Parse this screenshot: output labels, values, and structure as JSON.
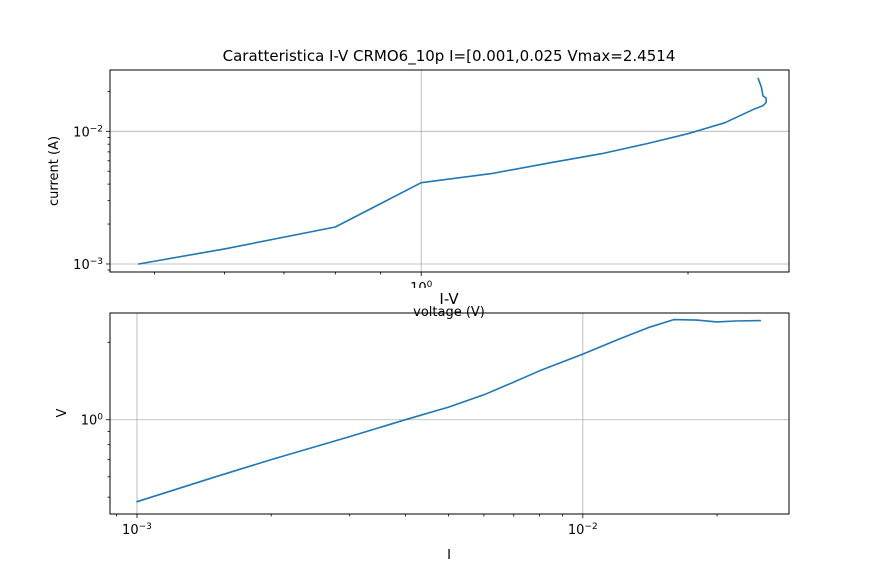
{
  "chart_data": [
    {
      "type": "line",
      "title": "Caratteristica I-V CRMO6_10p I=[0.001,0.025 Vmax=2.4514",
      "xlabel": "voltage (V)",
      "ylabel": "current (A)",
      "xscale": "log",
      "yscale": "log",
      "xlim": [
        0.4455,
        2.6
      ],
      "ylim": [
        0.00087,
        0.029
      ],
      "xticks": [
        {
          "value": 1,
          "label": "10^0"
        }
      ],
      "yticks": [
        {
          "value": 0.001,
          "label": "10^-3"
        },
        {
          "value": 0.01,
          "label": "10^-2"
        }
      ],
      "grid": true,
      "series": [
        {
          "color": "#1f77b4",
          "x": [
            0.48,
            0.6,
            0.8,
            1.0,
            1.2,
            1.4,
            1.6,
            1.8,
            2.0,
            2.2,
            2.38,
            2.43,
            2.45,
            2.45,
            2.43,
            2.42,
            2.4
          ],
          "y": [
            0.001,
            0.0013,
            0.0019,
            0.0041,
            0.0048,
            0.0058,
            0.0068,
            0.0081,
            0.0096,
            0.0116,
            0.0148,
            0.0156,
            0.0165,
            0.0178,
            0.0185,
            0.0215,
            0.025
          ]
        }
      ]
    },
    {
      "type": "line",
      "title": "I-V",
      "xlabel": "I",
      "ylabel": "V",
      "xscale": "log",
      "yscale": "log",
      "xlim": [
        0.00087,
        0.029
      ],
      "ylim": [
        0.43,
        2.6
      ],
      "xticks": [
        {
          "value": 0.001,
          "label": "10^-3"
        },
        {
          "value": 0.01,
          "label": "10^-2"
        }
      ],
      "yticks": [
        {
          "value": 1,
          "label": "10^0"
        }
      ],
      "grid": true,
      "series": [
        {
          "color": "#1f77b4",
          "x": [
            0.001,
            0.0015,
            0.002,
            0.003,
            0.004,
            0.005,
            0.006,
            0.007,
            0.008,
            0.01,
            0.012,
            0.014,
            0.016,
            0.018,
            0.02,
            0.022,
            0.025
          ],
          "y": [
            0.48,
            0.6,
            0.7,
            0.86,
            1.0,
            1.12,
            1.25,
            1.4,
            1.55,
            1.8,
            2.05,
            2.28,
            2.45,
            2.44,
            2.4,
            2.42,
            2.43
          ]
        }
      ]
    }
  ]
}
